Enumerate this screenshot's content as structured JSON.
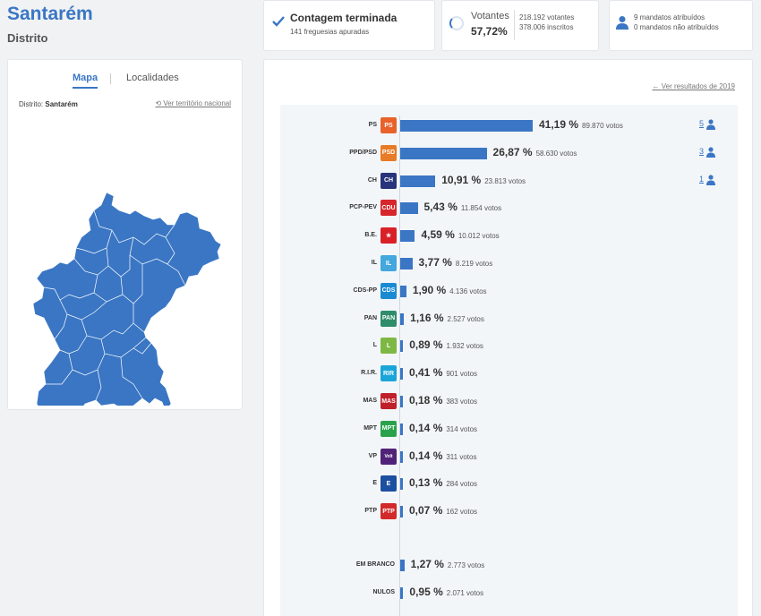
{
  "header": {
    "title": "Santarém",
    "subtitle": "Distrito"
  },
  "stats": {
    "count_title": "Contagem terminada",
    "count_sub": "141 freguesias apuradas",
    "votantes_label": "Votantes",
    "votantes_pct": "57,72%",
    "votantes_count": "218.192 votantes",
    "inscritos": "378.006 inscritos",
    "mandatos_atribuidos": "9 mandatos atribuídos",
    "mandatos_nao": "0 mandatos não atribuídos"
  },
  "map_panel": {
    "tab_mapa": "Mapa",
    "tab_localidades": "Localidades",
    "district_prefix": "Distrito:",
    "district_name": "Santarém",
    "ver_nacional": "Ver território nacional",
    "map_color": "#3a76c4"
  },
  "results": {
    "ver_2019": "Ver resultados de 2019",
    "bar_color": "#3a76c4",
    "parties": [
      {
        "name": "PS",
        "pct": "41,19 %",
        "votes": "89.870 votos",
        "value": 41.19,
        "seats": "5",
        "logo_color": "#e8622a",
        "logo_text": "PS"
      },
      {
        "name": "PPD/PSD",
        "pct": "26,87 %",
        "votes": "58.630 votos",
        "value": 26.87,
        "seats": "3",
        "logo_color": "#e87b25",
        "logo_text": "PSD"
      },
      {
        "name": "CH",
        "pct": "10,91 %",
        "votes": "23.813 votos",
        "value": 10.91,
        "seats": "1",
        "logo_color": "#27337a",
        "logo_text": "CH"
      },
      {
        "name": "PCP-PEV",
        "pct": "5,43 %",
        "votes": "11.854 votos",
        "value": 5.43,
        "seats": "",
        "logo_color": "#d7262b",
        "logo_text": "CDU"
      },
      {
        "name": "B.E.",
        "pct": "4,59 %",
        "votes": "10.012 votos",
        "value": 4.59,
        "seats": "",
        "logo_color": "#d92027",
        "logo_text": "★"
      },
      {
        "name": "IL",
        "pct": "3,77 %",
        "votes": "8.219 votos",
        "value": 3.77,
        "seats": "",
        "logo_color": "#44a7dd",
        "logo_text": "IL"
      },
      {
        "name": "CDS-PP",
        "pct": "1,90 %",
        "votes": "4.136 votos",
        "value": 1.9,
        "seats": "",
        "logo_color": "#1a8bd3",
        "logo_text": "CDS"
      },
      {
        "name": "PAN",
        "pct": "1,16 %",
        "votes": "2.527 votos",
        "value": 1.16,
        "seats": "",
        "logo_color": "#2e8d6b",
        "logo_text": "PAN"
      },
      {
        "name": "L",
        "pct": "0,89 %",
        "votes": "1.932 votos",
        "value": 0.89,
        "seats": "",
        "logo_color": "#7db845",
        "logo_text": "L"
      },
      {
        "name": "R.I.R.",
        "pct": "0,41 %",
        "votes": "901 votos",
        "value": 0.41,
        "seats": "",
        "logo_color": "#1aa5d8",
        "logo_text": "RIR"
      },
      {
        "name": "MAS",
        "pct": "0,18 %",
        "votes": "383 votos",
        "value": 0.18,
        "seats": "",
        "logo_color": "#c0202a",
        "logo_text": "MAS"
      },
      {
        "name": "MPT",
        "pct": "0,14 %",
        "votes": "314 votos",
        "value": 0.14,
        "seats": "",
        "logo_color": "#2aa24b",
        "logo_text": "MPT"
      },
      {
        "name": "VP",
        "pct": "0,14 %",
        "votes": "311 votos",
        "value": 0.14,
        "seats": "",
        "logo_color": "#502379",
        "logo_text": "Volt"
      },
      {
        "name": "E",
        "pct": "0,13 %",
        "votes": "284 votos",
        "value": 0.13,
        "seats": "",
        "logo_color": "#1c4fa0",
        "logo_text": "E"
      },
      {
        "name": "PTP",
        "pct": "0,07 %",
        "votes": "162 votos",
        "value": 0.07,
        "seats": "",
        "logo_color": "#d22a2a",
        "logo_text": "PTP"
      }
    ],
    "blank": {
      "name": "EM BRANCO",
      "pct": "1,27 %",
      "votes": "2.773 votos",
      "value": 1.27
    },
    "null": {
      "name": "NULOS",
      "pct": "0,95 %",
      "votes": "2.071 votos",
      "value": 0.95
    }
  }
}
